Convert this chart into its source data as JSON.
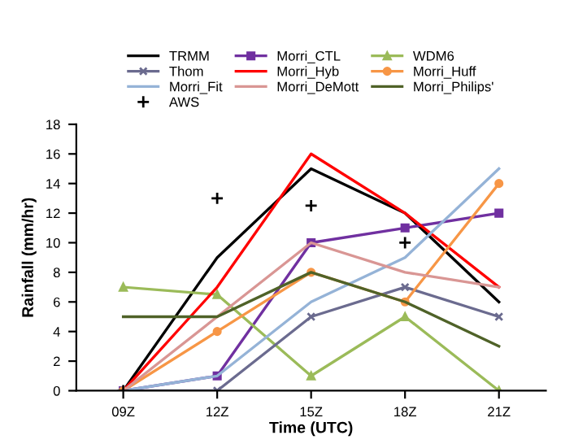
{
  "chart_data": {
    "type": "line",
    "xlabel": "Time (UTC)",
    "ylabel": "Rainfall (mm/hr)",
    "categories": [
      "09Z",
      "12Z",
      "15Z",
      "18Z",
      "21Z"
    ],
    "ylim": [
      0,
      18
    ],
    "yticks": [
      0,
      2,
      4,
      6,
      8,
      10,
      12,
      14,
      16,
      18
    ],
    "legend": "top",
    "grid": false,
    "series": [
      {
        "name": "TRMM",
        "color": "#000000",
        "marker": "none",
        "values": [
          0,
          9,
          15,
          12,
          6
        ]
      },
      {
        "name": "Morri_CTL",
        "color": "#7030a0",
        "marker": "square",
        "values": [
          0,
          1,
          10,
          11,
          12
        ]
      },
      {
        "name": "WDM6",
        "color": "#9bbb59",
        "marker": "triangle",
        "values": [
          7,
          6.5,
          1,
          5,
          0
        ]
      },
      {
        "name": "Thom",
        "color": "#6b6b8f",
        "marker": "cross",
        "values": [
          0,
          0,
          5,
          7,
          5
        ]
      },
      {
        "name": "Morri_Hyb",
        "color": "#ff0000",
        "marker": "none",
        "values": [
          0,
          7,
          16,
          12,
          7
        ]
      },
      {
        "name": "Morri_Huff",
        "color": "#f79646",
        "marker": "circle",
        "values": [
          0,
          4,
          8,
          6,
          14
        ]
      },
      {
        "name": "Morri_Fit",
        "color": "#95b3d7",
        "marker": "none",
        "values": [
          0,
          1,
          6,
          9,
          15
        ]
      },
      {
        "name": "Morri_DeMott",
        "color": "#d99694",
        "marker": "none",
        "values": [
          0,
          5,
          10,
          8,
          7
        ]
      },
      {
        "name": "Morri_Philips'",
        "color": "#4f6228",
        "marker": "none",
        "values": [
          5,
          5,
          8,
          6,
          3
        ]
      },
      {
        "name": "AWS",
        "type": "scatter",
        "color": "#000000",
        "marker": "plus",
        "values": [
          0,
          13,
          12.5,
          10,
          null
        ]
      }
    ]
  }
}
